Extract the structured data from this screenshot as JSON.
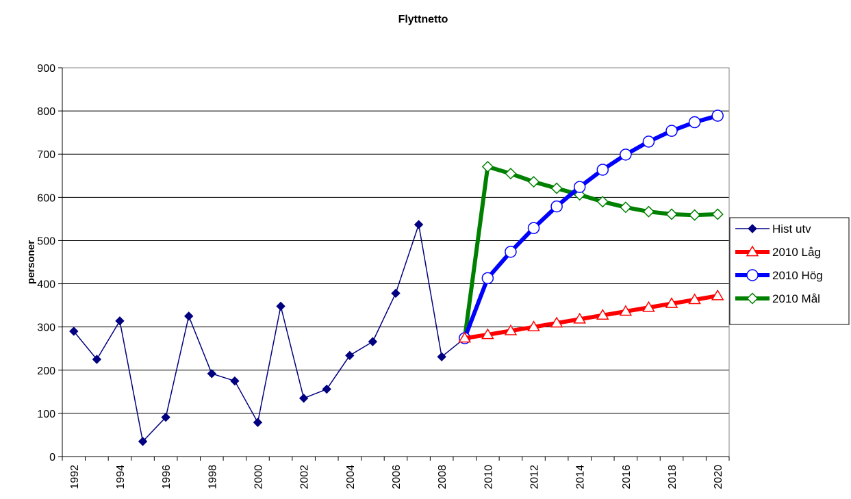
{
  "chart_data": {
    "type": "line",
    "title": "Flyttnetto",
    "xlabel": "",
    "ylabel": "personer",
    "ylim": [
      0,
      900
    ],
    "yticks": [
      0,
      100,
      200,
      300,
      400,
      500,
      600,
      700,
      800,
      900
    ],
    "xlim": [
      1992,
      2020
    ],
    "xticks": [
      1992,
      1994,
      1996,
      1998,
      2000,
      2002,
      2004,
      2006,
      2008,
      2010,
      2012,
      2014,
      2016,
      2018,
      2020
    ],
    "grid": "horizontal",
    "legend": "right",
    "series": [
      {
        "name": "Hist utv",
        "color": "#000080",
        "marker": "diamond-filled",
        "x": [
          1992,
          1993,
          1994,
          1995,
          1996,
          1997,
          1998,
          1999,
          2000,
          2001,
          2002,
          2003,
          2004,
          2005,
          2006,
          2007,
          2008,
          2009
        ],
        "values": [
          290,
          225,
          314,
          35,
          91,
          325,
          192,
          175,
          79,
          348,
          135,
          156,
          234,
          266,
          378,
          537,
          231,
          274
        ]
      },
      {
        "name": "2010 Låg",
        "color": "#ff0000",
        "marker": "triangle-open",
        "x": [
          2009,
          2010,
          2011,
          2012,
          2013,
          2014,
          2015,
          2016,
          2017,
          2018,
          2019,
          2020
        ],
        "values": [
          274,
          282,
          291,
          300,
          309,
          318,
          327,
          336,
          345,
          354,
          363,
          372
        ]
      },
      {
        "name": "2010 Hög",
        "color": "#0000ff",
        "marker": "circle-open",
        "x": [
          2009,
          2010,
          2011,
          2012,
          2013,
          2014,
          2015,
          2016,
          2017,
          2018,
          2019,
          2020
        ],
        "values": [
          274,
          413,
          474,
          529,
          579,
          624,
          664,
          699,
          729,
          754,
          774,
          789
        ]
      },
      {
        "name": "2010 Mål",
        "color": "#008000",
        "marker": "diamond-open",
        "x": [
          2009,
          2010,
          2011,
          2012,
          2013,
          2014,
          2015,
          2016,
          2017,
          2018,
          2019,
          2020
        ],
        "values": [
          274,
          671,
          655,
          636,
          621,
          606,
          590,
          577,
          567,
          561,
          559,
          561
        ]
      }
    ]
  }
}
